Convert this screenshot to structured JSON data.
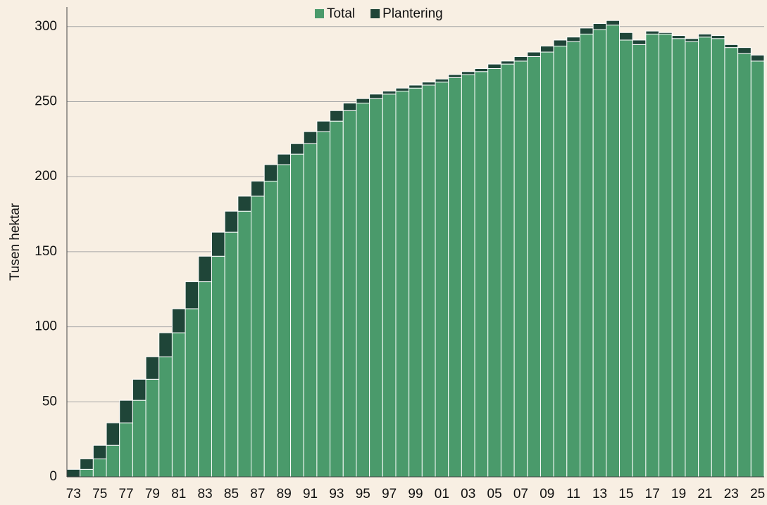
{
  "chart_data": {
    "type": "stacked_bar",
    "y_label": "Tusen hektar",
    "categories": [
      "73",
      null,
      "75",
      null,
      "77",
      null,
      "79",
      null,
      "81",
      null,
      "83",
      null,
      "85",
      null,
      "87",
      null,
      "89",
      null,
      "91",
      null,
      "93",
      null,
      "95",
      null,
      "97",
      null,
      "99",
      null,
      "01",
      null,
      "03",
      null,
      "05",
      null,
      "07",
      null,
      "09",
      null,
      "11",
      null,
      "13",
      null,
      "15",
      null,
      "17",
      null,
      "19",
      null,
      "21",
      null,
      "23",
      null,
      "25"
    ],
    "series": [
      {
        "name": "Total",
        "color": "#4a9a6b",
        "values": [
          0,
          5,
          12,
          21,
          36,
          51,
          65,
          80,
          96,
          112,
          130,
          147,
          163,
          177,
          187,
          197,
          208,
          215,
          222,
          230,
          237,
          244,
          249,
          252,
          255,
          257,
          259,
          261,
          263,
          266,
          268,
          270,
          272,
          275,
          277,
          280,
          283,
          287,
          290,
          295,
          298,
          301,
          291,
          288,
          295,
          295,
          292,
          290,
          293,
          292,
          286,
          282,
          277
        ]
      },
      {
        "name": "Plantering",
        "color": "#1f4538",
        "values": [
          5,
          7,
          9,
          15,
          15,
          14,
          15,
          16,
          16,
          18,
          17,
          16,
          14,
          10,
          10,
          11,
          7,
          7,
          8,
          7,
          7,
          5,
          3,
          3,
          2,
          2,
          2,
          2,
          2,
          2,
          2,
          2,
          3,
          2,
          3,
          3,
          4,
          4,
          3,
          4,
          4,
          3,
          5,
          3,
          2,
          1,
          2,
          2,
          2,
          2,
          2,
          4,
          4
        ]
      }
    ],
    "ylim": [
      0,
      313
    ],
    "yticks": [
      0,
      50,
      100,
      150,
      200,
      250,
      300
    ],
    "grid": true,
    "legend": "top"
  }
}
